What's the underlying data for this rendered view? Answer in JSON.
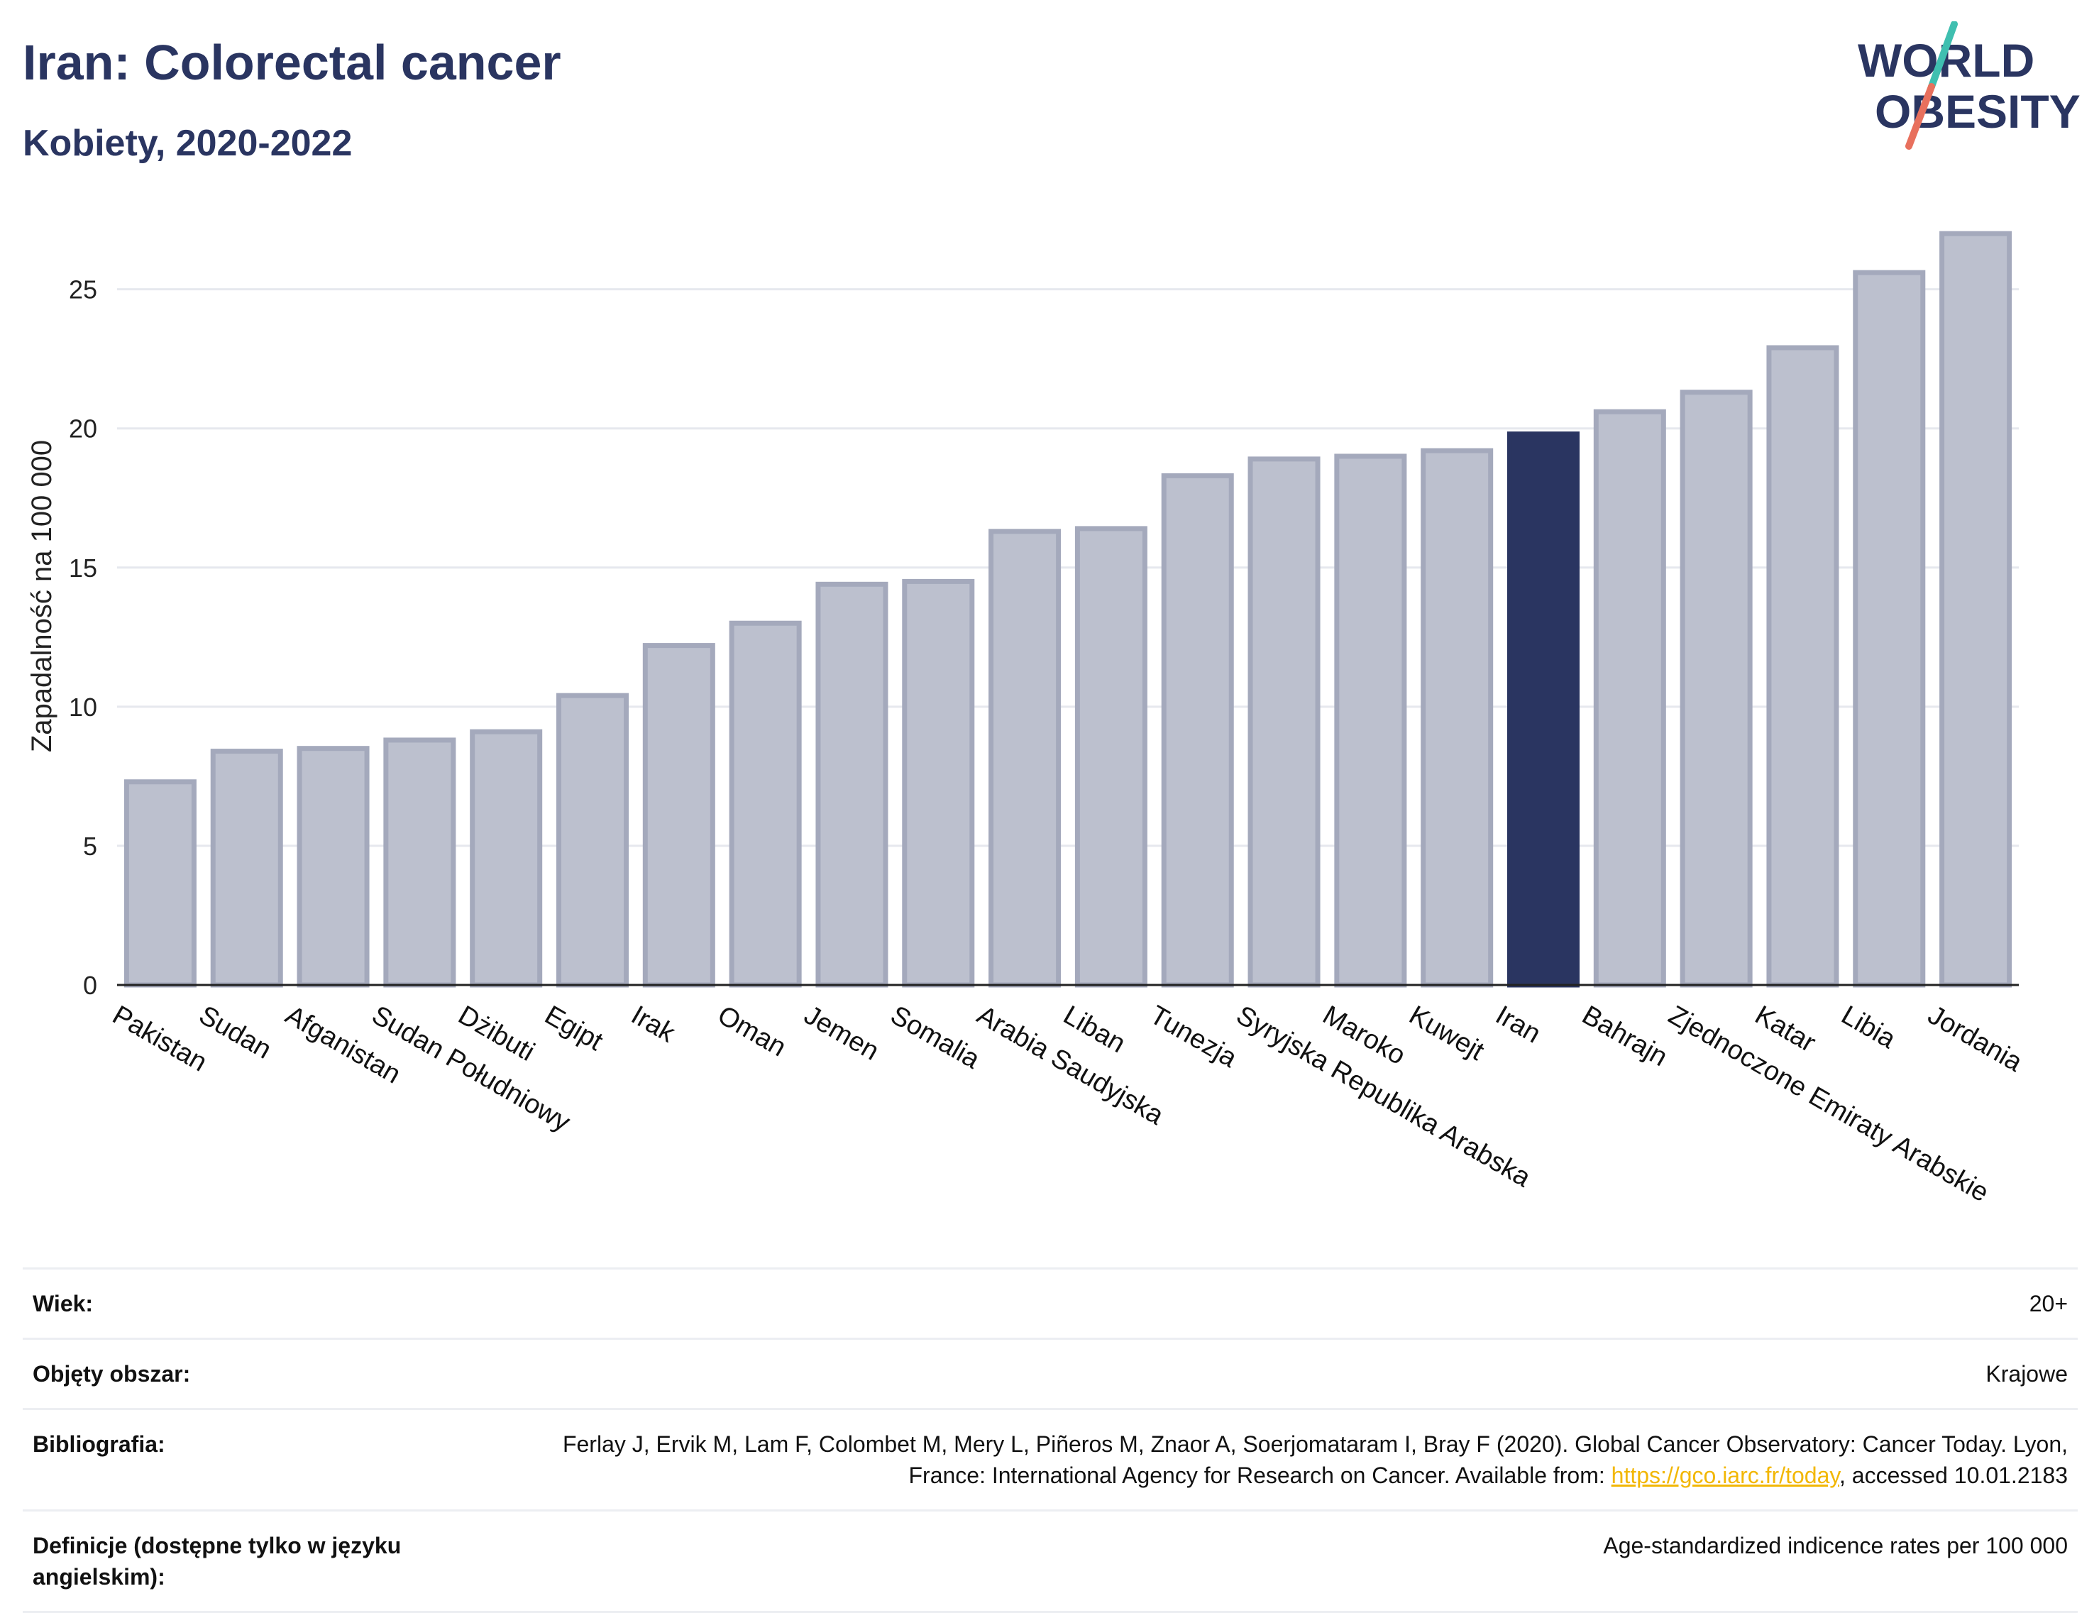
{
  "title": "Iran: Colorectal cancer",
  "subtitle": "Kobiety, 2020-2022",
  "logo": {
    "line1": "WORLD",
    "line2": "OBESITY"
  },
  "colors": {
    "highlight": "#2a3561",
    "bar": "#bcc0ce",
    "bar_border": "#a4a9bc",
    "slash_teal": "#3fbfb0",
    "slash_red": "#e8705d"
  },
  "chart_data": {
    "type": "bar",
    "ylabel": "Zapadalność na 100 000",
    "ylim": [
      0,
      28
    ],
    "yticks": [
      0,
      5,
      10,
      15,
      20,
      25
    ],
    "grid": true,
    "highlight": "Iran",
    "categories": [
      "Pakistan",
      "Sudan",
      "Afganistan",
      "Sudan Południowy",
      "Dżibuti",
      "Egipt",
      "Irak",
      "Oman",
      "Jemen",
      "Somalia",
      "Arabia Saudyjska",
      "Liban",
      "Tunezja",
      "Syryjska Republika Arabska",
      "Maroko",
      "Kuwejt",
      "Iran",
      "Bahrajn",
      "Zjednoczone Emiraty Arabskie",
      "Katar",
      "Libia",
      "Jordania"
    ],
    "values": [
      7.3,
      8.4,
      8.5,
      8.8,
      9.1,
      10.4,
      12.2,
      13.0,
      14.4,
      14.5,
      16.3,
      16.4,
      18.3,
      18.9,
      19.0,
      19.2,
      19.8,
      20.6,
      21.3,
      22.9,
      25.6,
      27.0
    ]
  },
  "info": {
    "age_label": "Wiek:",
    "age_value": "20+",
    "area_label": "Objęty obszar:",
    "area_value": "Krajowe",
    "biblio_label": "Bibliografia:",
    "biblio_text1": "Ferlay J, Ervik M, Lam F, Colombet M, Mery L, Piñeros M, Znaor A, Soerjomataram I, Bray F (2020). Global Cancer Observatory: Cancer Today. Lyon, France: International Agency for Research on Cancer. Available from: ",
    "biblio_link": "https://gco.iarc.fr/today",
    "biblio_text2": ", accessed 10.01.2183",
    "def_label": "Definicje (dostępne tylko w języku angielskim):",
    "def_value": "Age-standardized indicence rates per 100 000"
  }
}
